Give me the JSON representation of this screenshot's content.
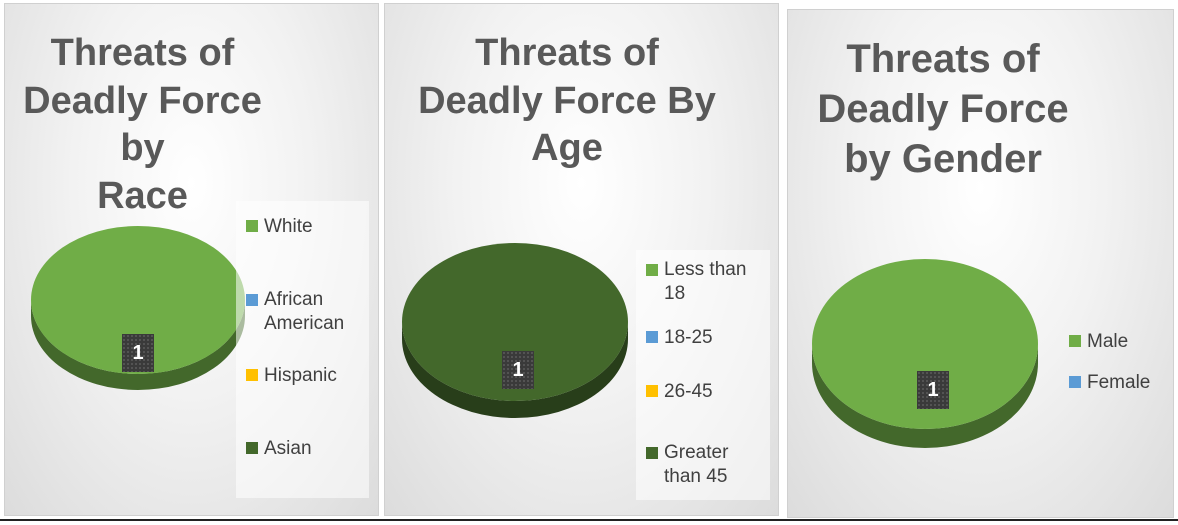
{
  "chart_data": [
    {
      "type": "pie",
      "title": "Threats of Deadly Force by Race",
      "title_lines": [
        "Threats of",
        "Deadly Force by",
        "Race"
      ],
      "categories": [
        "White",
        "African American",
        "Hispanic",
        "Asian"
      ],
      "values": [
        1,
        0,
        0,
        0
      ],
      "colors": [
        "#70ad47",
        "#5b9bd5",
        "#ffc000",
        "#43682b"
      ],
      "data_labels": [
        "1"
      ],
      "legend_position": "right"
    },
    {
      "type": "pie",
      "title": "Threats of Deadly Force By Age",
      "title_lines": [
        "Threats of",
        "Deadly Force By",
        "Age"
      ],
      "categories": [
        "Less than 18",
        "18-25",
        "26-45",
        "Greater than 45"
      ],
      "values": [
        0,
        0,
        0,
        1
      ],
      "colors": [
        "#70ad47",
        "#5b9bd5",
        "#ffc000",
        "#43682b"
      ],
      "data_labels": [
        "1"
      ],
      "legend_position": "right"
    },
    {
      "type": "pie",
      "title": "Threats of Deadly Force by Gender",
      "title_lines": [
        "Threats of",
        "Deadly Force",
        "by Gender"
      ],
      "categories": [
        "Male",
        "Female"
      ],
      "values": [
        1,
        0
      ],
      "colors": [
        "#70ad47",
        "#5b9bd5"
      ],
      "data_labels": [
        "1"
      ],
      "legend_position": "right"
    }
  ]
}
